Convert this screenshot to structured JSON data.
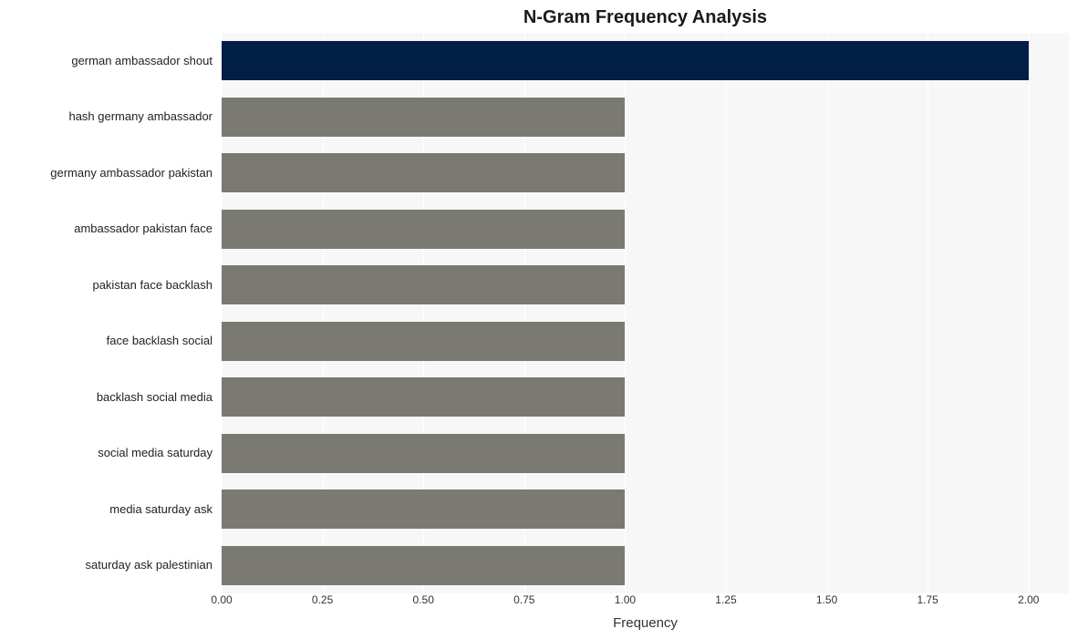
{
  "chart": {
    "type": "bar-horizontal",
    "title": "N-Gram Frequency Analysis",
    "title_fontsize": 20,
    "title_fontweight": "bold",
    "xlabel": "Frequency",
    "xlabel_fontsize": 15,
    "background_color": "#ffffff",
    "panel_color": "#f7f7f7",
    "grid_color": "#ffffff",
    "ylabel_fontsize": 13,
    "xtick_fontsize": 12,
    "xlim": [
      0.0,
      2.1
    ],
    "xticks": [
      "0.00",
      "0.25",
      "0.50",
      "0.75",
      "1.00",
      "1.25",
      "1.50",
      "1.75",
      "2.00"
    ],
    "xtick_values": [
      0.0,
      0.25,
      0.5,
      0.75,
      1.0,
      1.25,
      1.5,
      1.75,
      2.0
    ],
    "bar_height_ratio": 0.7,
    "categories": [
      "german ambassador shout",
      "hash germany ambassador",
      "germany ambassador pakistan",
      "ambassador pakistan face",
      "pakistan face backlash",
      "face backlash social",
      "backlash social media",
      "social media saturday",
      "media saturday ask",
      "saturday ask palestinian"
    ],
    "values": [
      2.0,
      1.0,
      1.0,
      1.0,
      1.0,
      1.0,
      1.0,
      1.0,
      1.0,
      1.0
    ],
    "bar_colors": [
      "#001e46",
      "#7b7a72",
      "#7b7a72",
      "#7b7a72",
      "#7b7a72",
      "#7b7a72",
      "#7b7a72",
      "#7b7a72",
      "#7b7a72",
      "#7b7a72"
    ]
  }
}
